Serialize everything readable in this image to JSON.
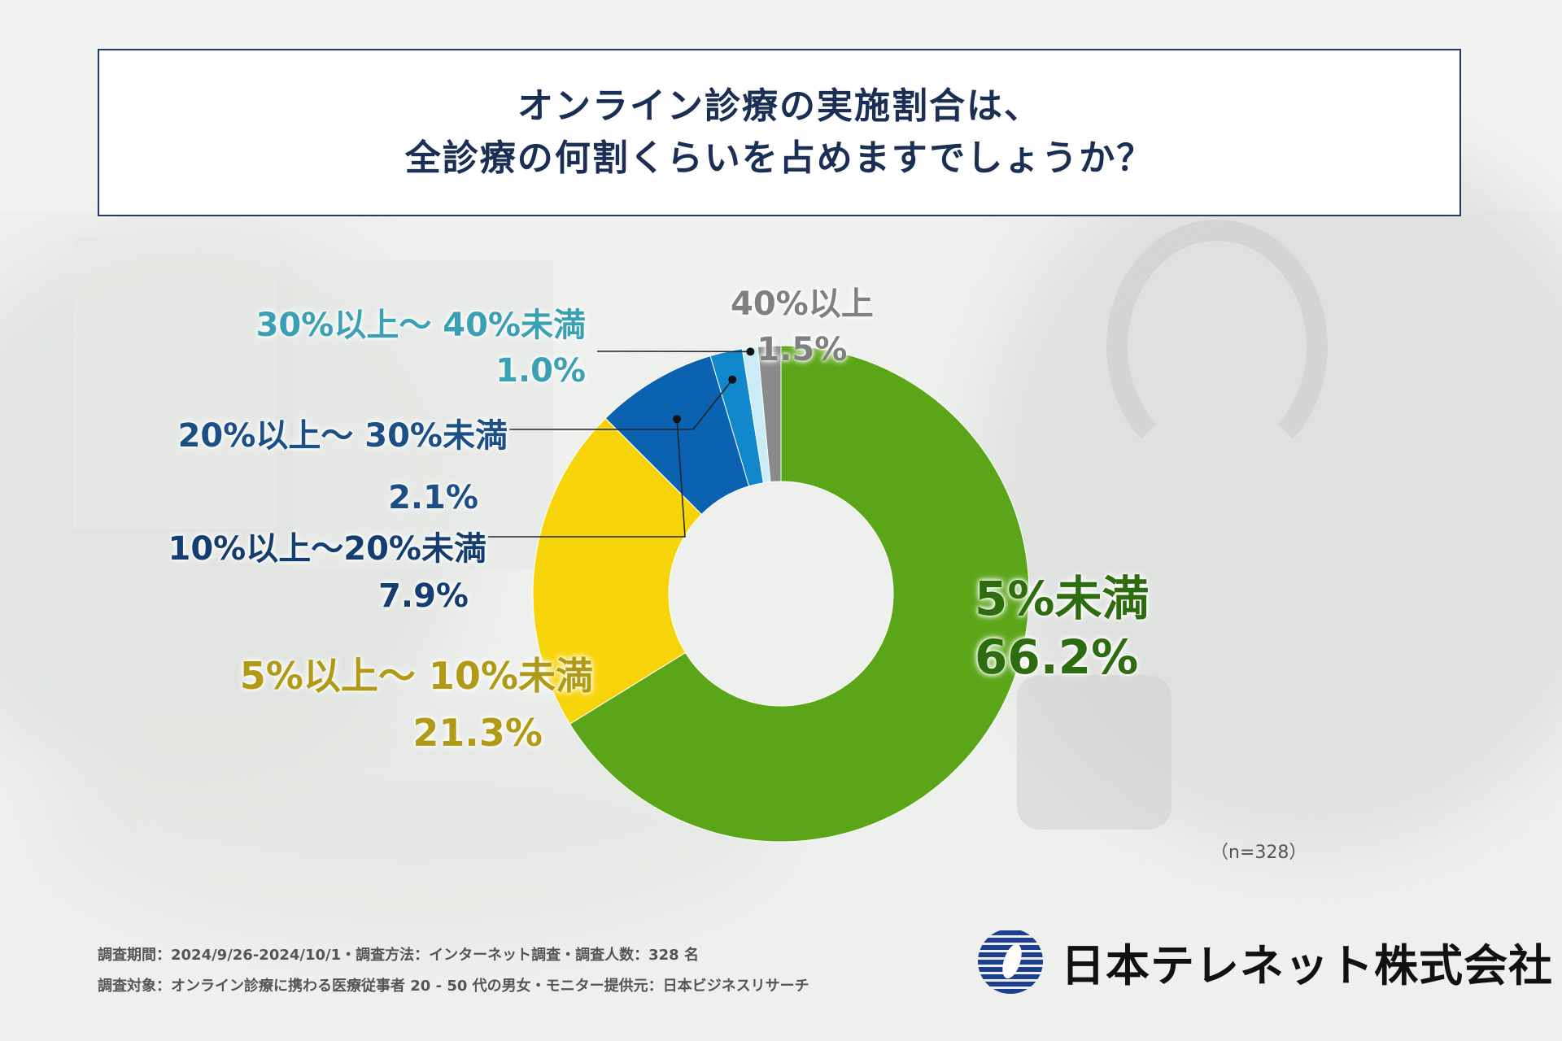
{
  "title": {
    "line1": "オンライン診療の実施割合は、",
    "line2": "全診療の何割くらいを占めますでしょうか？"
  },
  "chart_data": {
    "type": "pie",
    "subtype": "donut",
    "title": "オンライン診療の実施割合は、全診療の何割くらいを占めますでしょうか？",
    "categories": [
      "5%未満",
      "5%以上～ 10%未満",
      "10%以上～20%未満",
      "20%以上～ 30%未満",
      "30%以上～ 40%未満",
      "40%以上"
    ],
    "values": [
      66.2,
      21.3,
      7.9,
      2.1,
      1.0,
      1.5
    ],
    "value_labels": [
      "66.2%",
      "21.3%",
      "7.9%",
      "2.1%",
      "1.0%",
      "1.5%"
    ],
    "colors": [
      "#5ba618",
      "#f7d40a",
      "#0b62b0",
      "#1188cc",
      "#c9ecf6",
      "#8a8a8a"
    ],
    "label_colors": [
      "#2e6d0f",
      "#b09a16",
      "#153e70",
      "#1b4f85",
      "#3aa0b4",
      "#808080"
    ],
    "sample_note": "（n=328）"
  },
  "footer": {
    "line1": "調査期間：2024/9/26-2024/10/1・調査方法：インターネット調査・調査人数：328 名",
    "line2": "調査対象：オンライン診療に携わる医療従事者 20 - 50 代の男女・モニター提供元：日本ビジネスリサーチ"
  },
  "logo": {
    "company_name": "日本テレネット株式会社",
    "brand_color": "#1c3f8f"
  }
}
